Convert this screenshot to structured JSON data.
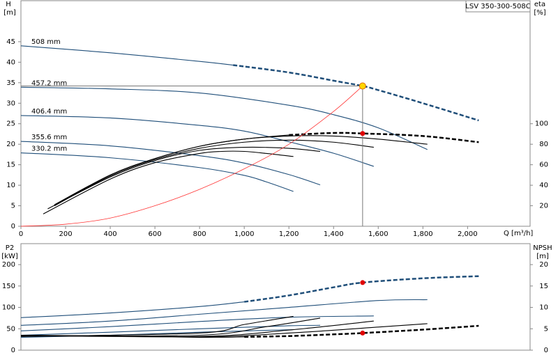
{
  "chart_data": [
    {
      "type": "line",
      "title": "LSV 350-300-508C",
      "y_label": "H",
      "y_unit": "[m]",
      "y2_label": "eta",
      "y2_unit": "[%]",
      "x_label": "Q [m³/h]",
      "xlim": [
        0,
        2280
      ],
      "ylim": [
        0,
        55
      ],
      "y2lim": [
        0,
        220
      ],
      "xticks": [
        0,
        200,
        400,
        600,
        800,
        {
          "value": 1000,
          "label": "1,000"
        },
        {
          "value": 1200,
          "label": "1,200"
        },
        {
          "value": 1400,
          "label": "1,400"
        },
        {
          "value": 1600,
          "label": "1,600"
        },
        {
          "value": 1800,
          "label": "1,800"
        },
        {
          "value": 2000,
          "label": "2,000"
        }
      ],
      "yticks": [
        0,
        5,
        10,
        15,
        20,
        25,
        30,
        35,
        40,
        45
      ],
      "y2ticks": [
        20,
        40,
        60,
        80,
        100
      ],
      "series": [
        {
          "name": "508 mm",
          "color": "#1f4e79",
          "dash": false,
          "x": [
            0,
            400,
            800,
            950
          ],
          "values": [
            44,
            42.3,
            40.2,
            39.3
          ]
        },
        {
          "color": "#1f4e79",
          "dash": true,
          "x": [
            950,
            1200,
            1400,
            1530,
            1600,
            1800,
            2050
          ],
          "values": [
            39.3,
            37.5,
            35.5,
            34.2,
            33.2,
            30,
            25.8
          ]
        },
        {
          "name": "457.2 mm",
          "color": "#1f4e79",
          "dash": false,
          "x": [
            0,
            400,
            800,
            1200,
            1400,
            1600,
            1820
          ],
          "values": [
            33.9,
            33.5,
            32.5,
            29.5,
            27.2,
            24,
            18.7
          ]
        },
        {
          "name": "406.4 mm",
          "color": "#1f4e79",
          "dash": false,
          "x": [
            0,
            400,
            800,
            1000,
            1200,
            1400,
            1580
          ],
          "values": [
            27,
            26.4,
            24.6,
            23.2,
            20.6,
            17.8,
            14.6
          ]
        },
        {
          "name": "355.6 mm",
          "color": "#1f4e79",
          "dash": false,
          "x": [
            0,
            400,
            800,
            1000,
            1200,
            1340
          ],
          "values": [
            20.7,
            19.6,
            17.2,
            15.4,
            12.6,
            10.1
          ]
        },
        {
          "name": "330.2 mm",
          "color": "#1f4e79",
          "dash": false,
          "x": [
            0,
            400,
            800,
            1000,
            1100,
            1220
          ],
          "values": [
            17.9,
            16.7,
            14.3,
            12.4,
            10.8,
            8.5
          ]
        },
        {
          "color": "#000000",
          "dash": false,
          "axis": "y2",
          "x": [
            150,
            400,
            600,
            800,
            1000,
            1200
          ],
          "values": [
            20,
            50,
            66,
            78,
            85,
            89
          ]
        },
        {
          "color": "#000000",
          "dash": true,
          "axis": "y2",
          "x": [
            1200,
            1400,
            1530,
            1800,
            2050
          ],
          "values": [
            89,
            91,
            90.5,
            88,
            82
          ]
        },
        {
          "color": "#000000",
          "dash": false,
          "axis": "y2",
          "x": [
            150,
            400,
            600,
            800,
            1000,
            1200,
            1400,
            1600,
            1820
          ],
          "values": [
            21,
            50,
            66,
            78,
            85,
            88,
            88,
            85,
            80
          ]
        },
        {
          "color": "#000000",
          "dash": false,
          "axis": "y2",
          "x": [
            150,
            400,
            600,
            800,
            1000,
            1200,
            1400,
            1580
          ],
          "values": [
            20,
            49,
            65,
            76,
            82,
            84,
            82,
            77
          ]
        },
        {
          "color": "#000000",
          "dash": false,
          "axis": "y2",
          "x": [
            120,
            400,
            600,
            800,
            1000,
            1200,
            1340
          ],
          "values": [
            17,
            48,
            64,
            74,
            77,
            76,
            73
          ]
        },
        {
          "color": "#000000",
          "dash": false,
          "axis": "y2",
          "x": [
            100,
            400,
            600,
            800,
            900,
            1000,
            1100,
            1220
          ],
          "values": [
            12,
            46,
            62,
            71,
            73,
            73,
            71,
            68
          ]
        },
        {
          "color": "#ff3333",
          "dash": false,
          "x": [
            0,
            200,
            400,
            600,
            800,
            1000,
            1200,
            1400,
            1530
          ],
          "values": [
            0,
            0.5,
            2,
            5,
            9,
            14,
            20,
            28,
            34.2
          ]
        }
      ],
      "operating_point": {
        "x": 1530,
        "value": 34.2,
        "eta": 90.5
      }
    },
    {
      "type": "line",
      "y_label": "P2",
      "y_unit": "[kW]",
      "y2_label": "NPSH",
      "y2_unit": "[m]",
      "xlim": [
        0,
        2280
      ],
      "ylim": [
        0,
        249
      ],
      "y2lim": [
        0,
        24.9
      ],
      "yticks": [
        0,
        50,
        100,
        150,
        200
      ],
      "y2ticks": [
        0,
        5,
        10,
        15,
        20
      ],
      "series": [
        {
          "color": "#1f4e79",
          "dash": false,
          "x": [
            0,
            400,
            800,
            1000
          ],
          "values": [
            76,
            87,
            102,
            113
          ]
        },
        {
          "color": "#1f4e79",
          "dash": true,
          "x": [
            1000,
            1200,
            1400,
            1530,
            1800,
            2050
          ],
          "values": [
            113,
            128,
            147,
            158,
            168,
            173
          ]
        },
        {
          "color": "#1f4e79",
          "dash": false,
          "x": [
            0,
            400,
            800,
            1200,
            1600,
            1820
          ],
          "values": [
            58,
            68,
            84,
            100,
            116,
            118
          ]
        },
        {
          "color": "#1f4e79",
          "dash": false,
          "x": [
            0,
            400,
            800,
            1200,
            1580
          ],
          "values": [
            45,
            55,
            67,
            77,
            80
          ]
        },
        {
          "color": "#1f4e79",
          "dash": false,
          "x": [
            0,
            400,
            800,
            1200,
            1340
          ],
          "values": [
            35,
            42,
            50,
            57,
            58
          ]
        },
        {
          "color": "#1f4e79",
          "dash": false,
          "x": [
            0,
            400,
            800,
            1220
          ],
          "values": [
            30,
            35,
            42,
            48
          ]
        },
        {
          "color": "#000000",
          "dash": false,
          "axis": "y2",
          "x": [
            0,
            400,
            800,
            1000
          ],
          "values": [
            3.5,
            3.3,
            3,
            3.1
          ]
        },
        {
          "color": "#000000",
          "dash": true,
          "axis": "y2",
          "x": [
            1000,
            1200,
            1400,
            1530,
            1800,
            2050
          ],
          "values": [
            3.1,
            3.3,
            3.7,
            4,
            4.8,
            5.7
          ]
        },
        {
          "color": "#000000",
          "dash": false,
          "axis": "y2",
          "x": [
            0,
            800,
            1200,
            1600,
            1820
          ],
          "values": [
            3.5,
            3.1,
            4,
            5.4,
            6.2
          ]
        },
        {
          "color": "#000000",
          "dash": false,
          "axis": "y2",
          "x": [
            0,
            800,
            1200,
            1580
          ],
          "values": [
            3.4,
            3.2,
            4.7,
            6.8
          ]
        },
        {
          "color": "#000000",
          "dash": false,
          "axis": "y2",
          "x": [
            0,
            800,
            1100,
            1340
          ],
          "values": [
            3.3,
            3.5,
            5.5,
            7.5
          ]
        },
        {
          "color": "#000000",
          "dash": false,
          "axis": "y2",
          "x": [
            0,
            800,
            1000,
            1220
          ],
          "values": [
            3.2,
            4,
            6,
            7.9
          ]
        }
      ],
      "operating_point": {
        "x": 1530,
        "value": 158,
        "npsh": 4
      }
    }
  ]
}
